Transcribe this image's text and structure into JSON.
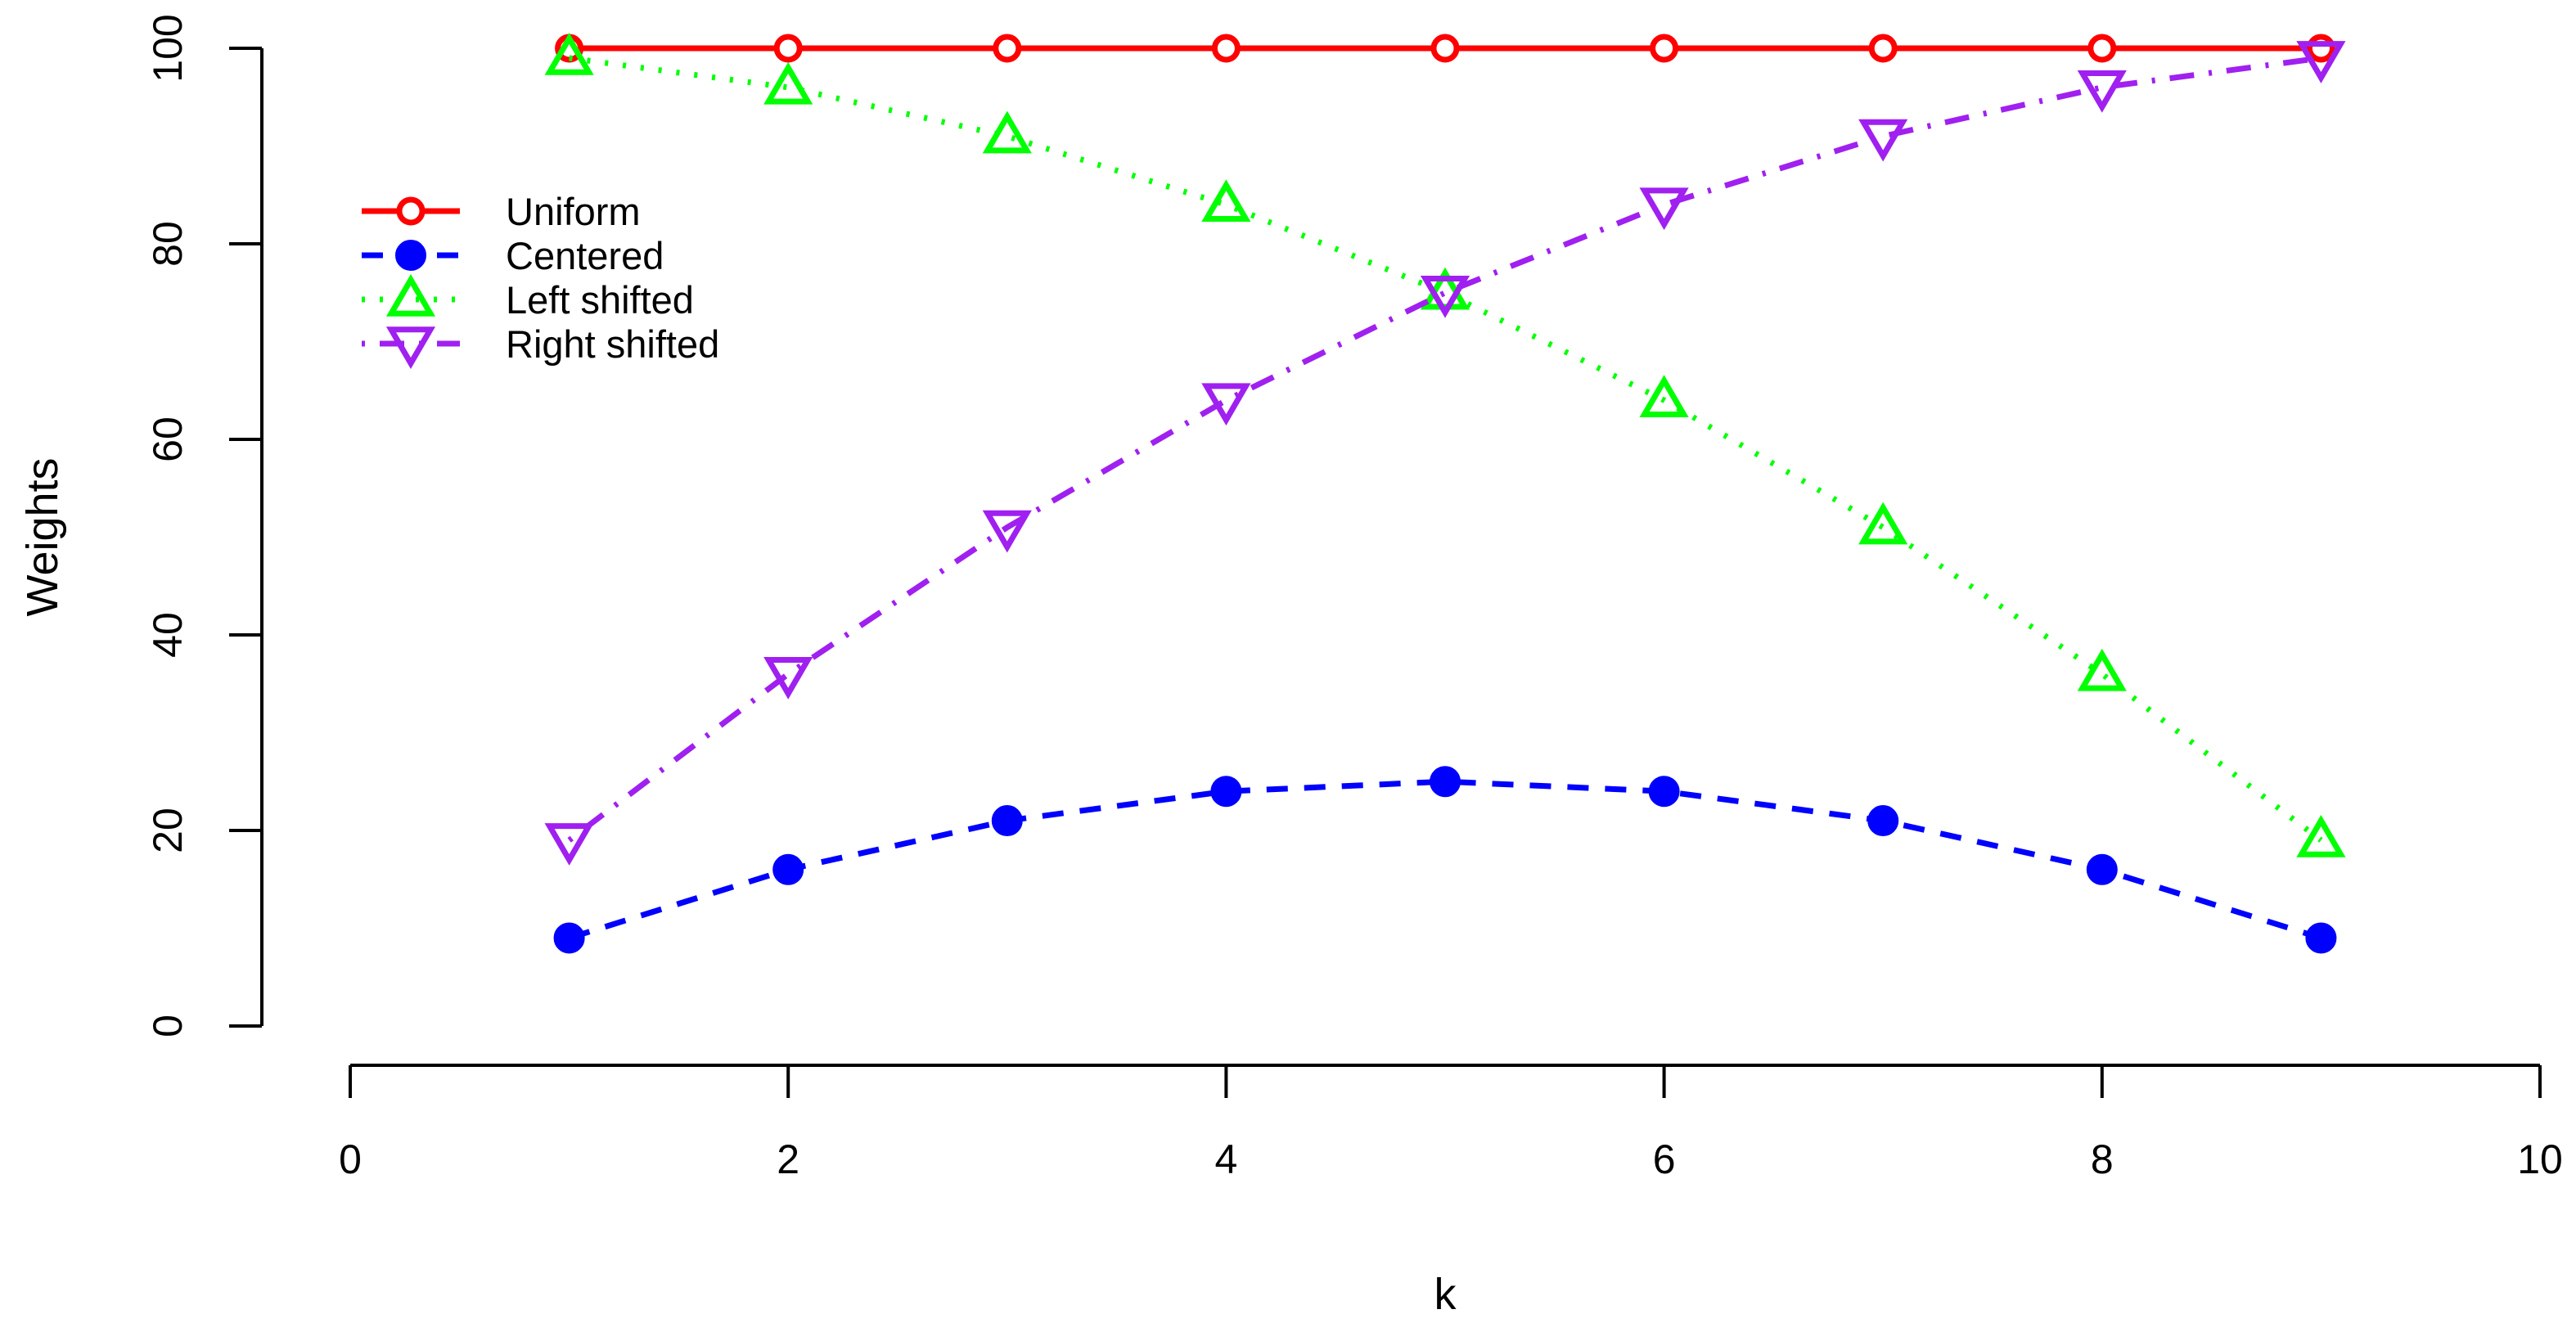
{
  "chart_data": {
    "type": "line",
    "title": "",
    "xlabel": "k",
    "ylabel": "Weights",
    "xlim": [
      0,
      10
    ],
    "ylim": [
      0,
      100
    ],
    "x_ticks": [
      "0",
      "2",
      "4",
      "6",
      "8",
      "10"
    ],
    "y_ticks": [
      "0",
      "20",
      "40",
      "60",
      "80",
      "100"
    ],
    "grid": false,
    "legend_position": "top-left",
    "x": [
      1,
      2,
      3,
      4,
      5,
      6,
      7,
      8,
      9
    ],
    "series": [
      {
        "name": "Uniform",
        "color": "#ff0000",
        "marker": "open-circle",
        "line_style": "solid",
        "values": [
          100,
          100,
          100,
          100,
          100,
          100,
          100,
          100,
          100
        ]
      },
      {
        "name": "Centered",
        "color": "#0000ff",
        "marker": "filled-circle",
        "line_style": "dashed",
        "values": [
          9,
          16,
          21,
          24,
          25,
          24,
          21,
          16,
          9
        ]
      },
      {
        "name": "Left shifted",
        "color": "#00ff00",
        "marker": "open-triangle-up",
        "line_style": "dotted",
        "values": [
          99,
          96,
          91,
          84,
          75,
          64,
          51,
          36,
          19
        ]
      },
      {
        "name": "Right shifted",
        "color": "#a020f0",
        "marker": "open-triangle-down",
        "line_style": "dotdash",
        "values": [
          19,
          36,
          51,
          64,
          75,
          84,
          91,
          96,
          99
        ]
      }
    ]
  }
}
